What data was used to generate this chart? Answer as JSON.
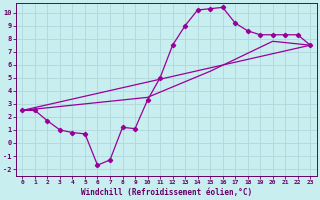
{
  "xlabel": "Windchill (Refroidissement éolien,°C)",
  "bg_color": "#c8eef0",
  "grid_color": "#b0d8dc",
  "line_color": "#990099",
  "spine_color": "#660066",
  "tick_color": "#660066",
  "xlim": [
    -0.5,
    23.5
  ],
  "ylim": [
    -2.5,
    10.7
  ],
  "xticks": [
    0,
    1,
    2,
    3,
    4,
    5,
    6,
    7,
    8,
    9,
    10,
    11,
    12,
    13,
    14,
    15,
    16,
    17,
    18,
    19,
    20,
    21,
    22,
    23
  ],
  "yticks": [
    -2,
    -1,
    0,
    1,
    2,
    3,
    4,
    5,
    6,
    7,
    8,
    9,
    10
  ],
  "jagged_x": [
    0,
    1,
    2,
    3,
    4,
    5,
    6,
    7,
    8,
    9,
    10,
    11,
    12,
    13,
    14,
    15,
    16,
    17,
    18,
    19,
    20,
    21,
    22,
    23
  ],
  "jagged_y": [
    2.5,
    2.5,
    1.7,
    1.0,
    0.8,
    0.7,
    -1.7,
    -1.3,
    1.2,
    1.1,
    3.3,
    5.0,
    7.5,
    9.0,
    10.2,
    10.3,
    10.4,
    9.2,
    8.6,
    8.3,
    8.3,
    8.3,
    8.3,
    7.5
  ],
  "trend1_x": [
    0,
    23
  ],
  "trend1_y": [
    2.5,
    7.5
  ],
  "trend2_x": [
    0,
    10,
    15,
    20,
    23
  ],
  "trend2_y": [
    2.5,
    3.5,
    5.5,
    7.8,
    7.5
  ]
}
